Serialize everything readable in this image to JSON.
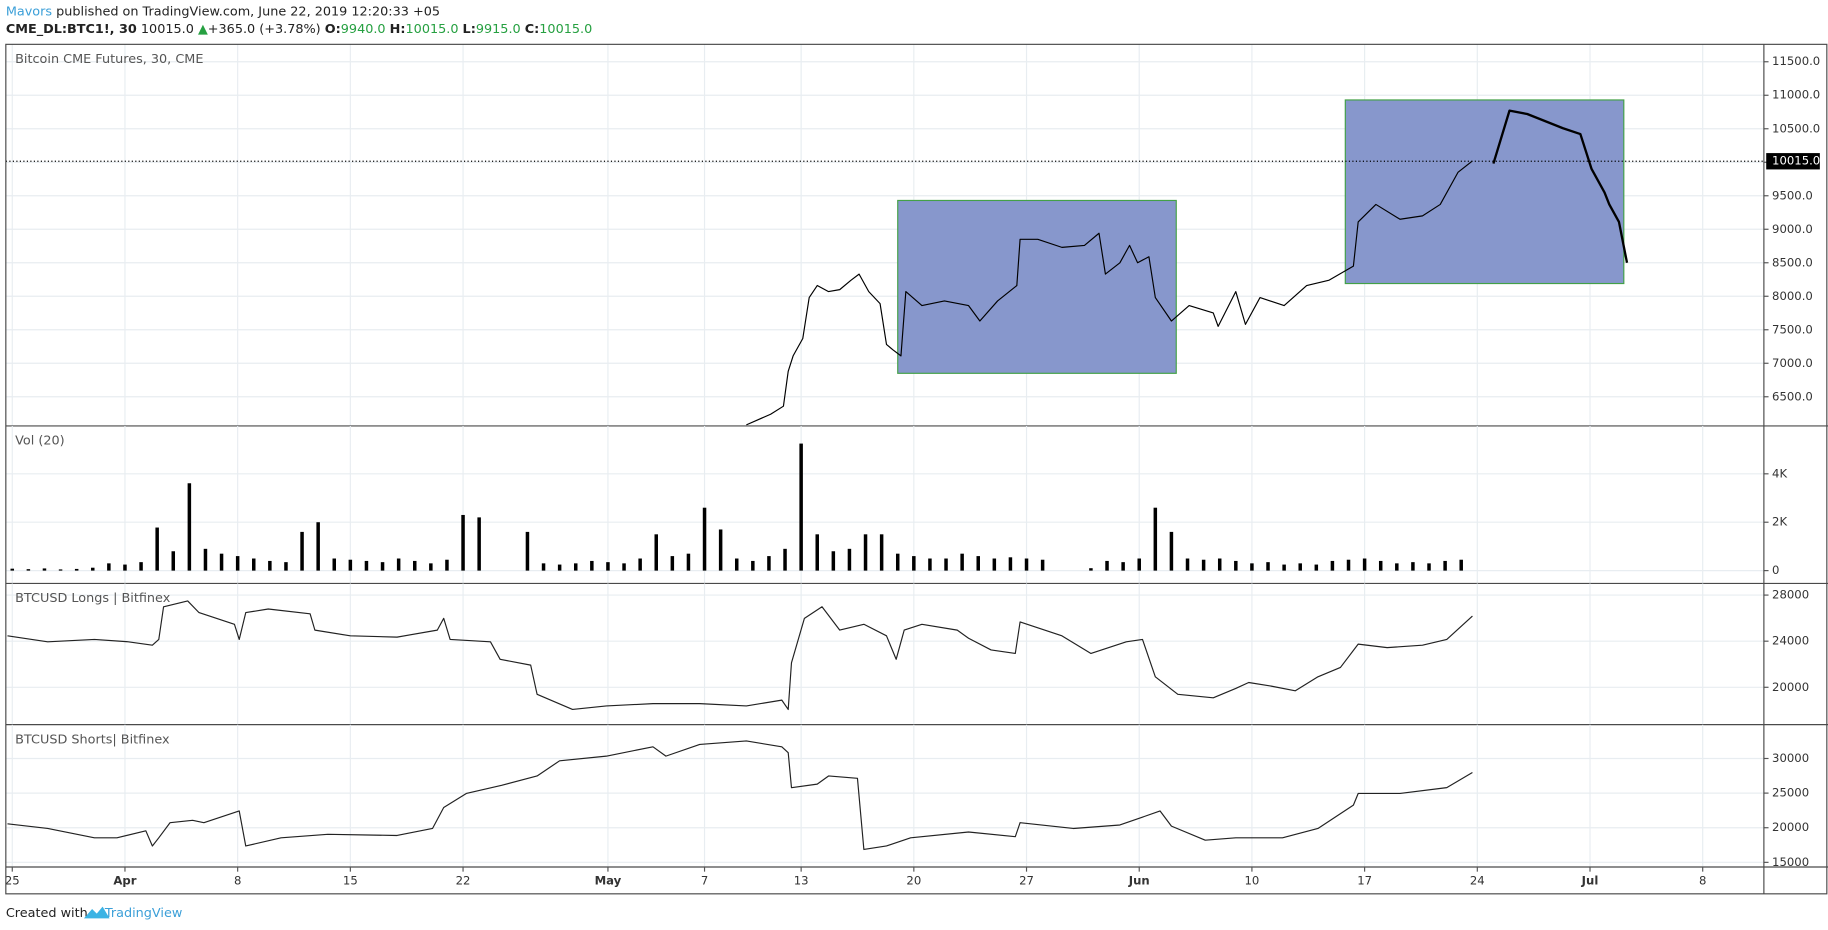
{
  "header": {
    "author": "Mavors",
    "published": "published on TradingView.com, June 22, 2019 12:20:33 +05",
    "symbol": "CME_DL:BTC1!, 30",
    "last": "10015.0",
    "arrow": "▲",
    "change": "+365.0 (+3.78%)",
    "ohlc": [
      {
        "label": "O:",
        "value": "9940.0"
      },
      {
        "label": "H:",
        "value": "10015.0"
      },
      {
        "label": "L:",
        "value": "9915.0"
      },
      {
        "label": "C:",
        "value": "10015.0"
      }
    ]
  },
  "footer": {
    "prefix": "Created with",
    "brand": "TradingView"
  },
  "chart_data": [
    {
      "type": "line",
      "title": "Bitcoin CME Futures, 30, CME",
      "ylim": [
        6065,
        11760
      ],
      "yticks": [
        {
          "value": 6500,
          "label": "6500.0"
        },
        {
          "value": 7000,
          "label": "7000.0"
        },
        {
          "value": 7500,
          "label": "7500.0"
        },
        {
          "value": 8000,
          "label": "8000.0"
        },
        {
          "value": 8500,
          "label": "8500.0"
        },
        {
          "value": 9000,
          "label": "9000.0"
        },
        {
          "value": 9500,
          "label": "9500.0"
        },
        {
          "value": 10000,
          "label": "10000.0"
        },
        {
          "value": 10500,
          "label": "10500.0"
        },
        {
          "value": 11000,
          "label": "11000.0"
        },
        {
          "value": 11500,
          "label": "11500.0"
        }
      ],
      "grid": true,
      "last_price": 10015,
      "last_price_label": "10015.0",
      "boxes": [
        {
          "xlim": [
            55.0,
            72.3
          ],
          "ylim": [
            6850,
            9430
          ]
        },
        {
          "xlim": [
            82.8,
            100.1
          ],
          "ylim": [
            8190,
            10930
          ]
        }
      ],
      "box_color": "#8797cc",
      "box_border": "#43a047",
      "series": [
        {
          "color": "#000000",
          "width": 1,
          "x": [
            45.6,
            47.1,
            47.9,
            48.2,
            48.5,
            49.1,
            49.5,
            50.0,
            50.7,
            51.4,
            52.1,
            52.6,
            53.2,
            53.9,
            54.3,
            54.7,
            55.2,
            55.5,
            56.5,
            57.9,
            59.4,
            60.1,
            61.2,
            62.4,
            62.6,
            63.7,
            65.2,
            66.6,
            67.5,
            67.9,
            68.8,
            69.4,
            69.9,
            70.6,
            71.0,
            72.0,
            73.1,
            74.6,
            74.9,
            76.0,
            76.6,
            77.5,
            79.0,
            80.4,
            81.8,
            83.3,
            83.6,
            84.7,
            86.2,
            87.6,
            88.7,
            89.8,
            90.7
          ],
          "values": [
            6080,
            6240,
            6360,
            6880,
            7110,
            7370,
            7980,
            8160,
            8070,
            8100,
            8240,
            8330,
            8070,
            7890,
            7280,
            7200,
            7110,
            8070,
            7860,
            7930,
            7860,
            7630,
            7930,
            8160,
            8850,
            8850,
            8730,
            8760,
            8940,
            8330,
            8500,
            8760,
            8500,
            8590,
            7980,
            7630,
            7860,
            7750,
            7550,
            8070,
            7580,
            7980,
            7860,
            8160,
            8240,
            8450,
            9110,
            9370,
            9150,
            9200,
            9370,
            9850,
            10020
          ]
        },
        {
          "color": "#000000",
          "width": 2,
          "x": [
            92.0,
            93.0,
            94.1,
            96.3,
            97.4,
            98.1,
            98.9,
            99.2,
            99.8,
            100.3
          ],
          "values": [
            9980,
            10770,
            10720,
            10510,
            10420,
            9900,
            9550,
            9370,
            9110,
            8500
          ]
        }
      ]
    },
    {
      "type": "bar",
      "title": "Vol (20)",
      "ylim": [
        -530,
        5980
      ],
      "yticks": [
        0,
        {
          "value": 2000,
          "label": "2K"
        },
        {
          "value": 4000,
          "label": "4K"
        }
      ],
      "grid": true,
      "color": "#000000",
      "x": [
        0,
        1,
        2,
        3,
        4,
        5,
        6,
        7,
        8,
        9,
        10,
        11,
        12,
        13,
        14,
        15,
        16,
        17,
        18,
        19,
        20,
        21,
        22,
        23,
        24,
        25,
        26,
        27,
        28,
        29,
        30,
        31,
        32,
        33,
        34,
        35,
        36,
        37,
        38,
        39,
        40,
        41,
        42,
        43,
        44,
        45,
        46,
        47,
        48,
        49,
        50,
        51,
        52,
        53,
        54,
        55,
        56,
        57,
        58,
        59,
        60,
        61,
        62,
        63,
        64,
        65,
        66,
        67,
        68,
        69,
        70,
        71,
        72,
        73,
        74,
        75,
        76,
        77,
        78,
        79,
        80,
        81,
        82,
        83,
        84,
        85,
        86,
        87,
        88,
        89,
        90
      ],
      "values": [
        80,
        60,
        90,
        50,
        70,
        120,
        300,
        250,
        350,
        1780,
        800,
        3610,
        900,
        700,
        600,
        500,
        400,
        350,
        1600,
        2000,
        500,
        450,
        400,
        350,
        500,
        400,
        300,
        450,
        2300,
        2200,
        0,
        0,
        1600,
        300,
        250,
        300,
        400,
        350,
        300,
        500,
        1500,
        600,
        700,
        2600,
        1700,
        500,
        400,
        600,
        900,
        5250,
        1500,
        800,
        900,
        1500,
        1500,
        700,
        600,
        500,
        500,
        700,
        600,
        500,
        550,
        500,
        450,
        0,
        0,
        100,
        400,
        350,
        500,
        2600,
        1600,
        500,
        450,
        500,
        400,
        300,
        350,
        250,
        300,
        250,
        400,
        450,
        500,
        400,
        300,
        350,
        300,
        400,
        450
      ]
    },
    {
      "type": "line",
      "title": "BTCUSD Longs | Bitfinex",
      "ylim": [
        16760,
        29010
      ],
      "yticks": [
        20000,
        24000,
        28000
      ],
      "grid": true,
      "series": [
        {
          "color": "#222222",
          "width": 1,
          "x": [
            -0.3,
            2.2,
            5.1,
            7.2,
            8.7,
            9.1,
            9.4,
            10.9,
            11.6,
            13.8,
            14.1,
            14.5,
            15.9,
            18.5,
            18.8,
            21.0,
            23.9,
            26.4,
            26.8,
            27.2,
            29.7,
            30.3,
            32.2,
            32.6,
            34.8,
            36.9,
            39.8,
            42.7,
            45.6,
            47.8,
            48.2,
            48.4,
            49.2,
            50.3,
            51.4,
            52.9,
            54.3,
            54.9,
            55.4,
            56.5,
            58.7,
            59.4,
            60.8,
            62.3,
            62.6,
            65.2,
            67.0,
            69.2,
            70.2,
            71.0,
            72.4,
            74.6,
            76.0,
            76.8,
            78.2,
            79.7,
            81.1,
            82.5,
            83.6,
            85.4,
            87.6,
            89.1,
            90.7
          ],
          "values": [
            24460,
            23950,
            24150,
            23950,
            23650,
            24150,
            26990,
            27490,
            26480,
            25470,
            24150,
            26480,
            26790,
            26380,
            24960,
            24460,
            24350,
            24960,
            25980,
            24150,
            23950,
            22430,
            21920,
            19390,
            18080,
            18380,
            18580,
            18580,
            18380,
            18890,
            18080,
            22130,
            25980,
            26990,
            24960,
            25470,
            24460,
            22430,
            24960,
            25470,
            24960,
            24250,
            23240,
            22940,
            25670,
            24460,
            22940,
            23950,
            24150,
            20910,
            19390,
            19090,
            19900,
            20410,
            20100,
            19700,
            20910,
            21720,
            23750,
            23440,
            23650,
            24150,
            26180
          ]
        }
      ]
    },
    {
      "type": "line",
      "title": "BTCUSD Shorts| Bitfinex",
      "ylim": [
        14330,
        34890
      ],
      "yticks": [
        15000,
        20000,
        25000,
        30000
      ],
      "grid": true,
      "xlim": [
        -0.4,
        108.8
      ],
      "xticks": [
        {
          "value": 0,
          "label": "25"
        },
        {
          "value": 7,
          "label": "Apr"
        },
        {
          "value": 14,
          "label": "8"
        },
        {
          "value": 21,
          "label": "15"
        },
        {
          "value": 28,
          "label": "22"
        },
        {
          "value": 37,
          "label": "May"
        },
        {
          "value": 43,
          "label": "7"
        },
        {
          "value": 49,
          "label": "13"
        },
        {
          "value": 56,
          "label": "20"
        },
        {
          "value": 63,
          "label": "27"
        },
        {
          "value": 70,
          "label": "Jun"
        },
        {
          "value": 77,
          "label": "10"
        },
        {
          "value": 84,
          "label": "17"
        },
        {
          "value": 91,
          "label": "24"
        },
        {
          "value": 98,
          "label": "Jul"
        },
        {
          "value": 105,
          "label": "8"
        }
      ],
      "series": [
        {
          "color": "#222222",
          "width": 1,
          "x": [
            -0.3,
            2.2,
            5.1,
            6.5,
            8.3,
            8.7,
            9.1,
            9.8,
            11.2,
            11.9,
            14.1,
            14.5,
            16.7,
            19.6,
            23.9,
            26.1,
            26.8,
            28.2,
            30.4,
            32.6,
            34.0,
            36.9,
            39.8,
            40.6,
            42.7,
            45.6,
            47.8,
            48.2,
            48.4,
            50.0,
            50.7,
            52.5,
            52.9,
            54.3,
            55.8,
            59.4,
            62.3,
            62.6,
            65.9,
            68.8,
            71.3,
            72.0,
            74.1,
            76.0,
            78.9,
            81.1,
            83.3,
            83.6,
            86.2,
            89.1,
            90.7
          ],
          "values": [
            20560,
            19890,
            18540,
            18540,
            19550,
            17360,
            18540,
            20730,
            21070,
            20730,
            22420,
            17360,
            18540,
            19050,
            18880,
            19890,
            22920,
            24940,
            26120,
            27470,
            29660,
            30340,
            31690,
            30340,
            32020,
            32530,
            31690,
            30840,
            25790,
            26290,
            27470,
            27140,
            16850,
            17360,
            18540,
            19380,
            18710,
            20730,
            19890,
            20390,
            22420,
            20230,
            18200,
            18540,
            18540,
            19890,
            23260,
            24940,
            24940,
            25790,
            27980
          ]
        }
      ]
    }
  ]
}
